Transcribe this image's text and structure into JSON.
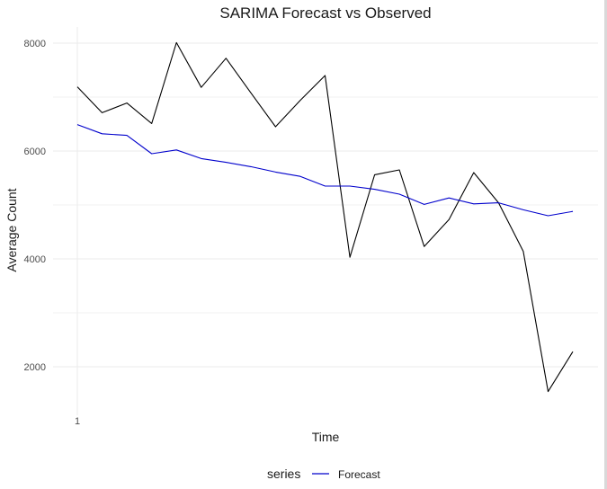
{
  "chart_data": {
    "type": "line",
    "title": "SARIMA Forecast vs Observed",
    "xlabel": "Time",
    "ylabel": "Average Count",
    "x_tick_labels": [
      "1"
    ],
    "y_ticks": [
      2000,
      4000,
      6000,
      8000
    ],
    "ylim": [
      1100,
      8300
    ],
    "grid": true,
    "legend": {
      "position": "bottom",
      "title": "series",
      "entries": [
        "Forecast"
      ]
    },
    "series": [
      {
        "name": "Forecast",
        "color": "#0000cc",
        "values": [
          6490,
          6320,
          6290,
          5950,
          6020,
          5860,
          5790,
          5710,
          5610,
          5530,
          5350,
          5350,
          5290,
          5200,
          5010,
          5130,
          5020,
          5040,
          4910,
          4800,
          4880
        ]
      },
      {
        "color": "#000000",
        "values": [
          7190,
          6710,
          6890,
          6510,
          8010,
          7180,
          7720,
          7080,
          6450,
          6940,
          7400,
          4030,
          5560,
          5650,
          4230,
          4730,
          5600,
          5040,
          4140,
          1540,
          2280
        ]
      }
    ]
  }
}
